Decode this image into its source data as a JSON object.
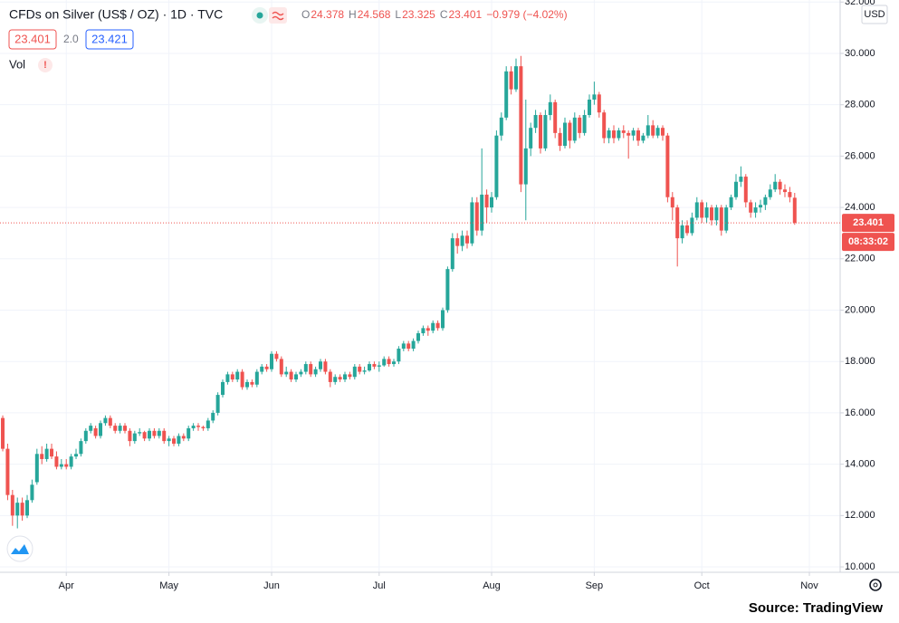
{
  "chart_data": {
    "type": "candlestick",
    "title": "CFDs on Silver (US$ / OZ) · 1D · TVC",
    "ohlc_letters": [
      "O",
      "H",
      "L",
      "C"
    ],
    "change_label": "−0.979 (−4.02%)",
    "spread": "2.0",
    "ask": 23.421,
    "volume_label": "Vol",
    "currency": "USD",
    "countdown": "08:33:02",
    "source": "Source: TradingView",
    "up_color": "#26a69a",
    "down_color": "#ef5350",
    "grid": true,
    "xlim": [
      -0.56,
      171.3
    ],
    "xticks": [
      {
        "value": 13,
        "label": "Apr"
      },
      {
        "value": 34,
        "label": "May"
      },
      {
        "value": 55,
        "label": "Jun"
      },
      {
        "value": 77,
        "label": "Jul"
      },
      {
        "value": 100,
        "label": "Aug"
      },
      {
        "value": 121,
        "label": "Sep"
      },
      {
        "value": 143,
        "label": "Oct"
      },
      {
        "value": 165,
        "label": "Nov"
      }
    ],
    "ylim": [
      9.79,
      32.08
    ],
    "yticks": [
      {
        "value": 10,
        "label": "10.000"
      },
      {
        "value": 12,
        "label": "12.000"
      },
      {
        "value": 14,
        "label": "14.000"
      },
      {
        "value": 16,
        "label": "16.000"
      },
      {
        "value": 18,
        "label": "18.000"
      },
      {
        "value": 20,
        "label": "20.000"
      },
      {
        "value": 22,
        "label": "22.000"
      },
      {
        "value": 24,
        "label": "24.000"
      },
      {
        "value": 26,
        "label": "26.000"
      },
      {
        "value": 28,
        "label": "28.000"
      },
      {
        "value": 30,
        "label": "30.000"
      },
      {
        "value": 32,
        "label": "32.000"
      }
    ],
    "ohlc": [
      [
        15.8,
        15.9,
        14.5,
        14.6
      ],
      [
        14.6,
        14.8,
        12.6,
        12.8
      ],
      [
        12.8,
        13.0,
        11.6,
        12.0
      ],
      [
        12.0,
        12.7,
        11.5,
        12.5
      ],
      [
        12.5,
        12.7,
        11.8,
        12.0
      ],
      [
        12.0,
        12.8,
        11.9,
        12.6
      ],
      [
        12.6,
        13.4,
        12.5,
        13.2
      ],
      [
        13.3,
        14.6,
        13.2,
        14.4
      ],
      [
        14.4,
        14.7,
        14.0,
        14.2
      ],
      [
        14.2,
        14.8,
        14.1,
        14.6
      ],
      [
        14.6,
        14.8,
        14.2,
        14.3
      ],
      [
        14.3,
        14.5,
        13.8,
        13.9
      ],
      [
        13.9,
        14.2,
        13.8,
        14.0
      ],
      [
        14.0,
        14.2,
        13.8,
        13.9
      ],
      [
        13.9,
        14.4,
        13.8,
        14.3
      ],
      [
        14.3,
        14.6,
        14.2,
        14.4
      ],
      [
        14.4,
        15.0,
        14.3,
        14.9
      ],
      [
        14.9,
        15.4,
        14.8,
        15.3
      ],
      [
        15.3,
        15.6,
        15.2,
        15.5
      ],
      [
        15.4,
        15.5,
        15.0,
        15.1
      ],
      [
        15.1,
        15.7,
        15.0,
        15.6
      ],
      [
        15.6,
        15.9,
        15.5,
        15.8
      ],
      [
        15.8,
        15.9,
        15.4,
        15.5
      ],
      [
        15.5,
        15.6,
        15.2,
        15.3
      ],
      [
        15.3,
        15.6,
        15.2,
        15.5
      ],
      [
        15.5,
        15.6,
        15.2,
        15.3
      ],
      [
        15.3,
        15.4,
        14.7,
        14.9
      ],
      [
        14.9,
        15.3,
        14.8,
        15.2
      ],
      [
        15.2,
        15.4,
        15.1,
        15.25
      ],
      [
        15.25,
        15.3,
        14.9,
        15.0
      ],
      [
        15.0,
        15.4,
        14.9,
        15.3
      ],
      [
        15.3,
        15.4,
        15.0,
        15.1
      ],
      [
        15.1,
        15.4,
        15.0,
        15.3
      ],
      [
        15.3,
        15.4,
        14.8,
        14.9
      ],
      [
        14.9,
        15.1,
        14.7,
        15.0
      ],
      [
        15.0,
        15.1,
        14.7,
        14.8
      ],
      [
        14.8,
        15.2,
        14.7,
        15.1
      ],
      [
        15.1,
        15.2,
        14.9,
        15.0
      ],
      [
        15.0,
        15.5,
        14.9,
        15.4
      ],
      [
        15.4,
        15.6,
        15.3,
        15.5
      ],
      [
        15.5,
        15.6,
        15.3,
        15.45
      ],
      [
        15.45,
        15.5,
        15.3,
        15.4
      ],
      [
        15.4,
        15.8,
        15.3,
        15.7
      ],
      [
        15.7,
        16.1,
        15.6,
        16.0
      ],
      [
        16.0,
        16.8,
        15.9,
        16.7
      ],
      [
        16.7,
        17.3,
        16.6,
        17.2
      ],
      [
        17.2,
        17.6,
        17.1,
        17.5
      ],
      [
        17.5,
        17.6,
        17.2,
        17.3
      ],
      [
        17.3,
        17.7,
        17.2,
        17.6
      ],
      [
        17.6,
        17.7,
        16.9,
        17.0
      ],
      [
        17.0,
        17.3,
        16.9,
        17.2
      ],
      [
        17.2,
        17.3,
        17.0,
        17.1
      ],
      [
        17.1,
        17.7,
        17.0,
        17.6
      ],
      [
        17.6,
        17.9,
        17.5,
        17.8
      ],
      [
        17.8,
        17.9,
        17.6,
        17.7
      ],
      [
        17.7,
        18.4,
        17.6,
        18.3
      ],
      [
        18.3,
        18.4,
        18.0,
        18.1
      ],
      [
        18.1,
        18.2,
        17.4,
        17.5
      ],
      [
        17.5,
        17.8,
        17.4,
        17.6
      ],
      [
        17.6,
        17.7,
        17.2,
        17.3
      ],
      [
        17.3,
        17.6,
        17.2,
        17.5
      ],
      [
        17.5,
        17.7,
        17.4,
        17.6
      ],
      [
        17.6,
        18.0,
        17.5,
        17.9
      ],
      [
        17.9,
        18.0,
        17.4,
        17.5
      ],
      [
        17.5,
        17.8,
        17.4,
        17.7
      ],
      [
        17.7,
        18.1,
        17.6,
        18.0
      ],
      [
        18.0,
        18.1,
        17.5,
        17.6
      ],
      [
        17.6,
        17.7,
        17.0,
        17.2
      ],
      [
        17.2,
        17.5,
        17.1,
        17.4
      ],
      [
        17.4,
        17.5,
        17.2,
        17.3
      ],
      [
        17.3,
        17.6,
        17.2,
        17.5
      ],
      [
        17.5,
        17.6,
        17.3,
        17.4
      ],
      [
        17.4,
        17.9,
        17.3,
        17.8
      ],
      [
        17.8,
        17.9,
        17.5,
        17.6
      ],
      [
        17.6,
        17.8,
        17.5,
        17.65
      ],
      [
        17.65,
        18.0,
        17.6,
        17.9
      ],
      [
        17.9,
        18.0,
        17.7,
        17.8
      ],
      [
        17.8,
        18.0,
        17.6,
        17.85
      ],
      [
        17.85,
        18.2,
        17.8,
        18.1
      ],
      [
        18.1,
        18.2,
        17.8,
        17.9
      ],
      [
        17.9,
        18.1,
        17.8,
        18.0
      ],
      [
        18.0,
        18.6,
        17.9,
        18.5
      ],
      [
        18.5,
        18.8,
        18.4,
        18.7
      ],
      [
        18.7,
        18.8,
        18.4,
        18.5
      ],
      [
        18.5,
        18.9,
        18.4,
        18.8
      ],
      [
        18.8,
        19.2,
        18.7,
        19.1
      ],
      [
        19.1,
        19.4,
        19.0,
        19.3
      ],
      [
        19.3,
        19.4,
        19.0,
        19.2
      ],
      [
        19.2,
        19.6,
        19.1,
        19.5
      ],
      [
        19.5,
        19.6,
        19.2,
        19.3
      ],
      [
        19.3,
        20.1,
        19.2,
        20.0
      ],
      [
        20.0,
        21.7,
        19.9,
        21.6
      ],
      [
        21.6,
        23.0,
        21.5,
        22.8
      ],
      [
        22.8,
        23.0,
        22.2,
        22.5
      ],
      [
        22.5,
        23.1,
        22.3,
        22.9
      ],
      [
        22.9,
        23.1,
        22.4,
        22.6
      ],
      [
        22.6,
        24.4,
        22.5,
        24.2
      ],
      [
        24.2,
        24.4,
        22.9,
        23.1
      ],
      [
        23.1,
        26.3,
        22.9,
        24.5
      ],
      [
        24.5,
        24.7,
        23.4,
        24.0
      ],
      [
        24.0,
        24.6,
        23.8,
        24.4
      ],
      [
        24.4,
        27.0,
        24.3,
        26.8
      ],
      [
        26.8,
        27.7,
        26.6,
        27.5
      ],
      [
        27.5,
        29.5,
        27.4,
        29.3
      ],
      [
        29.3,
        29.5,
        28.4,
        28.6
      ],
      [
        28.6,
        29.8,
        28.5,
        29.5
      ],
      [
        29.5,
        29.9,
        24.6,
        24.9
      ],
      [
        24.9,
        28.2,
        23.5,
        26.3
      ],
      [
        26.3,
        27.3,
        26.0,
        27.1
      ],
      [
        27.1,
        27.8,
        26.9,
        27.6
      ],
      [
        27.6,
        27.7,
        26.1,
        26.3
      ],
      [
        26.3,
        27.8,
        26.2,
        27.6
      ],
      [
        27.6,
        28.4,
        27.4,
        28.1
      ],
      [
        28.1,
        28.2,
        26.7,
        26.9
      ],
      [
        26.9,
        27.1,
        26.2,
        26.4
      ],
      [
        26.4,
        27.5,
        26.3,
        27.3
      ],
      [
        27.3,
        27.4,
        26.3,
        26.6
      ],
      [
        26.6,
        27.7,
        26.5,
        27.5
      ],
      [
        27.5,
        27.6,
        26.7,
        26.9
      ],
      [
        26.9,
        27.8,
        26.8,
        27.6
      ],
      [
        27.6,
        28.4,
        27.5,
        28.2
      ],
      [
        28.2,
        28.9,
        28.0,
        28.4
      ],
      [
        28.4,
        28.5,
        27.5,
        27.7
      ],
      [
        27.7,
        27.8,
        26.5,
        26.7
      ],
      [
        26.7,
        27.1,
        26.5,
        27.0
      ],
      [
        27.0,
        27.2,
        26.5,
        26.7
      ],
      [
        26.7,
        27.1,
        26.6,
        27.0
      ],
      [
        27.0,
        27.2,
        26.7,
        26.9
      ],
      [
        26.9,
        27.0,
        25.9,
        26.8
      ],
      [
        26.8,
        27.1,
        26.6,
        27.0
      ],
      [
        27.0,
        27.1,
        26.4,
        26.6
      ],
      [
        26.6,
        26.9,
        26.5,
        26.8
      ],
      [
        26.8,
        27.6,
        26.7,
        27.2
      ],
      [
        27.2,
        27.4,
        26.7,
        26.8
      ],
      [
        26.8,
        27.2,
        26.7,
        27.1
      ],
      [
        27.1,
        27.2,
        26.6,
        26.8
      ],
      [
        26.8,
        26.9,
        24.2,
        24.4
      ],
      [
        24.4,
        24.6,
        23.5,
        24.0
      ],
      [
        24.0,
        24.1,
        21.7,
        22.8
      ],
      [
        22.8,
        23.5,
        22.6,
        23.3
      ],
      [
        23.3,
        23.5,
        22.9,
        23.0
      ],
      [
        23.0,
        23.8,
        22.9,
        23.6
      ],
      [
        23.6,
        24.4,
        23.5,
        24.2
      ],
      [
        24.2,
        24.3,
        23.4,
        23.6
      ],
      [
        23.6,
        24.2,
        23.4,
        24.0
      ],
      [
        24.0,
        24.1,
        23.3,
        23.5
      ],
      [
        23.5,
        24.1,
        23.3,
        24.0
      ],
      [
        24.0,
        24.1,
        22.9,
        23.1
      ],
      [
        23.1,
        24.1,
        23.0,
        24.0
      ],
      [
        24.0,
        24.5,
        23.9,
        24.4
      ],
      [
        24.4,
        25.3,
        24.3,
        25.0
      ],
      [
        25.0,
        25.6,
        24.8,
        25.2
      ],
      [
        25.2,
        25.3,
        24.0,
        24.2
      ],
      [
        24.2,
        24.3,
        23.6,
        23.8
      ],
      [
        23.8,
        24.2,
        23.6,
        24.0
      ],
      [
        24.0,
        24.3,
        23.8,
        24.1
      ],
      [
        24.1,
        24.5,
        23.9,
        24.4
      ],
      [
        24.4,
        24.9,
        24.3,
        24.7
      ],
      [
        24.7,
        25.3,
        24.6,
        25.0
      ],
      [
        25.0,
        25.1,
        24.5,
        24.7
      ],
      [
        24.7,
        24.9,
        24.4,
        24.6
      ],
      [
        24.6,
        24.8,
        24.2,
        24.4
      ],
      [
        24.378,
        24.568,
        23.325,
        23.401
      ]
    ]
  }
}
